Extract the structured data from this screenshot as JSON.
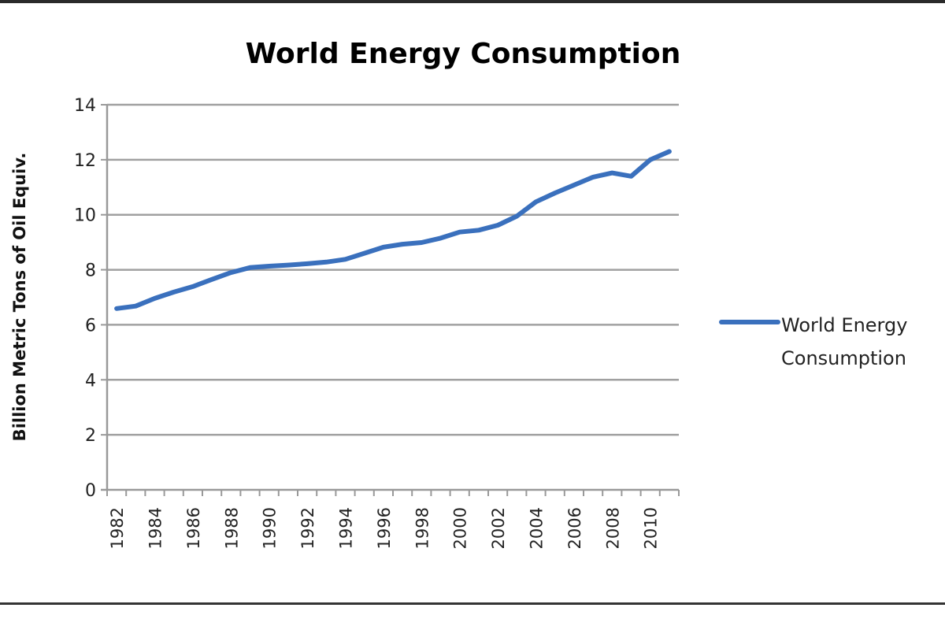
{
  "chart_data": {
    "type": "line",
    "title": "World Energy Consumption",
    "xlabel": "",
    "ylabel": "Billion Metric Tons of Oil Equiv.",
    "ylim": [
      0,
      14
    ],
    "yticks": [
      "0",
      "2",
      "4",
      "6",
      "8",
      "10",
      "12",
      "14"
    ],
    "grid": true,
    "legend_position": "right",
    "x": [
      "1982",
      "1983",
      "1984",
      "1985",
      "1986",
      "1987",
      "1988",
      "1989",
      "1990",
      "1991",
      "1992",
      "1993",
      "1994",
      "1995",
      "1996",
      "1997",
      "1998",
      "1999",
      "2000",
      "2001",
      "2002",
      "2003",
      "2004",
      "2005",
      "2006",
      "2007",
      "2008",
      "2009",
      "2010",
      "2011"
    ],
    "xtick_labels": [
      "1982",
      "1984",
      "1986",
      "1988",
      "1990",
      "1992",
      "1994",
      "1996",
      "1998",
      "2000",
      "2002",
      "2004",
      "2006",
      "2008",
      "2010"
    ],
    "series": [
      {
        "name": "World Energy Consumption",
        "color": "#3A70BD",
        "values": [
          6.59,
          6.68,
          6.96,
          7.19,
          7.39,
          7.65,
          7.9,
          8.08,
          8.13,
          8.17,
          8.22,
          8.28,
          8.38,
          8.6,
          8.82,
          8.93,
          8.99,
          9.15,
          9.37,
          9.44,
          9.62,
          9.95,
          10.47,
          10.79,
          11.08,
          11.37,
          11.52,
          11.4,
          12.0,
          12.3
        ]
      }
    ],
    "legend": {
      "line1": "World Energy",
      "line2": "Consumption"
    }
  }
}
